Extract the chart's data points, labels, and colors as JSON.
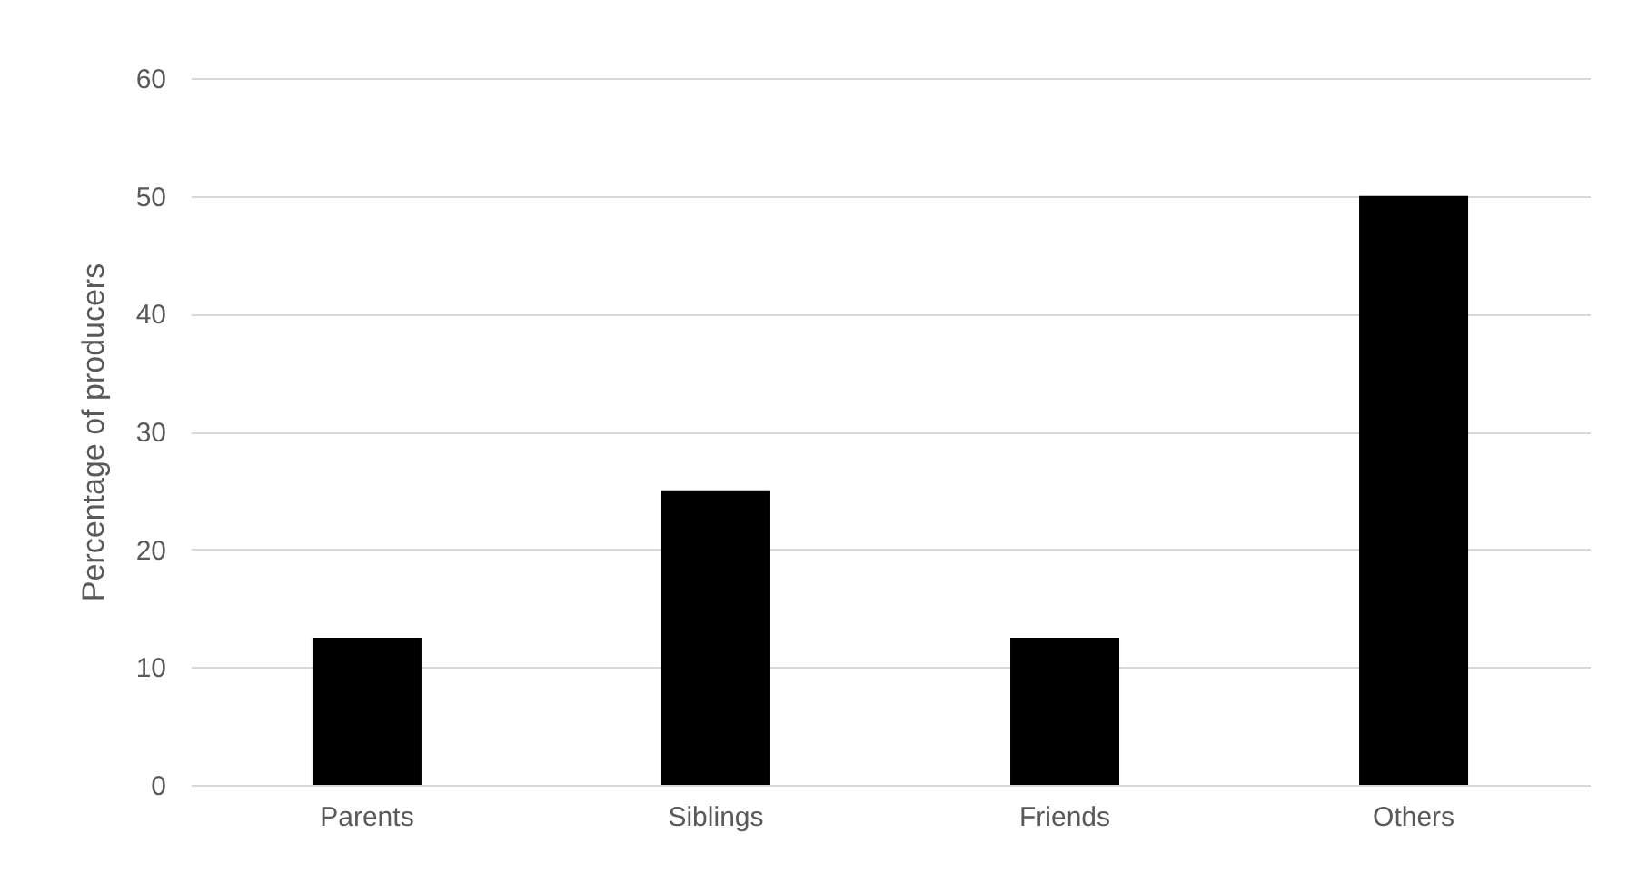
{
  "chart_data": {
    "type": "bar",
    "ylabel": "Percentage of producers",
    "categories": [
      "Parents",
      "Siblings",
      "Friends",
      "Others"
    ],
    "values": [
      12.5,
      25,
      12.5,
      50
    ],
    "color": "#000000",
    "ylim": [
      0,
      60
    ],
    "yticks": [
      0,
      10,
      20,
      30,
      40,
      50,
      60
    ],
    "grid": "y"
  }
}
